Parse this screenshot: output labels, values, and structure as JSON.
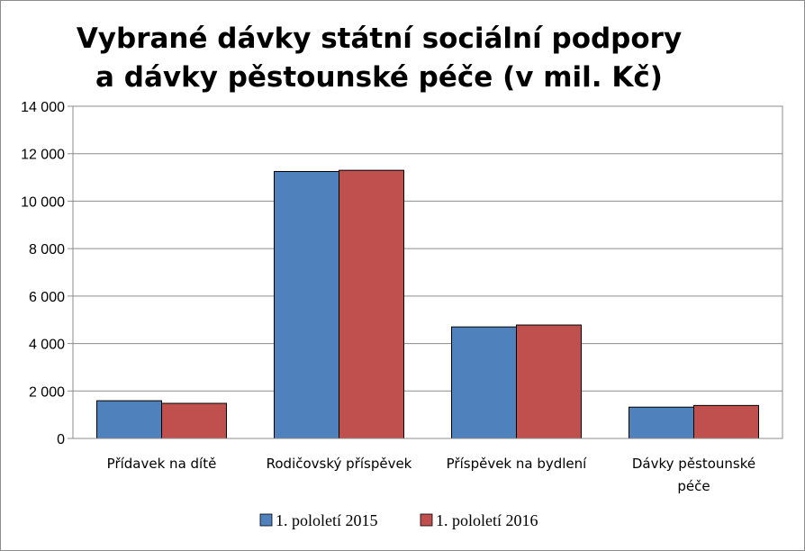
{
  "chart_data": {
    "type": "bar",
    "title_lines": [
      "Vybrané dávky státní sociální podpory",
      "a dávky pěstounské péče (v mil. Kč)"
    ],
    "categories": [
      [
        "Přídavek na dítě"
      ],
      [
        "Rodičovský příspěvek"
      ],
      [
        "Příspěvek na bydlení"
      ],
      [
        "Dávky pěstounské",
        "péče"
      ]
    ],
    "series": [
      {
        "name": "1. pololetí 2015",
        "color": "#4f81bd",
        "values": [
          1590,
          11250,
          4700,
          1320
        ]
      },
      {
        "name": "1. pololetí 2016",
        "color": "#c0504d",
        "values": [
          1480,
          11300,
          4780,
          1390
        ]
      }
    ],
    "ylim": [
      0,
      14000
    ],
    "yticks": [
      0,
      2000,
      4000,
      6000,
      8000,
      10000,
      12000,
      14000
    ],
    "ytick_labels": [
      "0",
      "2 000",
      "4 000",
      "6 000",
      "8 000",
      "10 000",
      "12 000",
      "14 000"
    ],
    "grid": true,
    "legend_position": "bottom"
  }
}
